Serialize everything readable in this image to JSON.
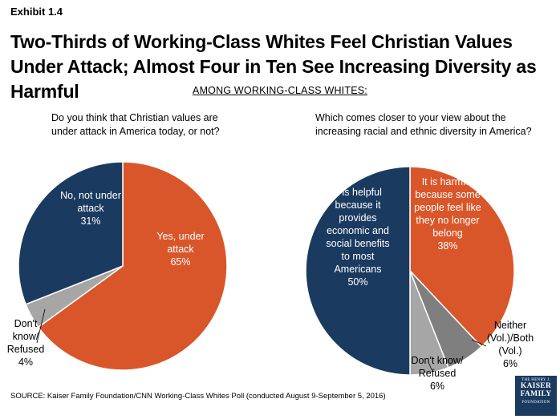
{
  "exhibit_label": "Exhibit 1.4",
  "title": "Two-Thirds of Working-Class Whites Feel Christian Values Under Attack; Almost Four in Ten See Increasing Diversity as Harmful",
  "subheading": "AMONG WORKING-CLASS WHITES:",
  "source": "SOURCE: Kaiser Family Foundation/CNN Working-Class Whites Poll (conducted August 9-September 5, 2016)",
  "logo": {
    "line1": "THE HENRY J.",
    "line2": "KAISER",
    "line3": "FAMILY",
    "line4": "FOUNDATION"
  },
  "colors": {
    "orange": "#d9562a",
    "navy": "#1b3a60",
    "gray": "#7f7f7f",
    "lightgray": "#a6a6a6"
  },
  "chart_data": [
    {
      "type": "pie",
      "title": "Do you think that Christian values are under attack in America today, or not?",
      "slices": [
        {
          "label": "Yes, under attack",
          "value": 65,
          "color": "#d9562a",
          "label_lines": [
            "Yes, under",
            "attack",
            "65%"
          ]
        },
        {
          "label": "Don't know/Refused",
          "value": 4,
          "color": "#a6a6a6",
          "label_lines": [
            "Don't",
            "know/",
            "Refused",
            "4%"
          ]
        },
        {
          "label": "No, not under attack",
          "value": 31,
          "color": "#1b3a60",
          "label_lines": [
            "No, not under",
            "attack",
            "31%"
          ]
        }
      ]
    },
    {
      "type": "pie",
      "title": "Which comes closer to your view about the increasing racial and ethnic diversity in America?",
      "slices": [
        {
          "label": "It is harmful because some people feel like they no longer belong",
          "value": 38,
          "color": "#d9562a",
          "label_lines": [
            "It is harmful",
            "because some",
            "people feel like",
            "they no longer",
            "belong",
            "38%"
          ]
        },
        {
          "label": "Neither (Vol.)/Both (Vol.)",
          "value": 6,
          "color": "#7f7f7f",
          "label_lines": [
            "Neither",
            "(Vol.)/Both",
            "(Vol.)",
            "6%"
          ]
        },
        {
          "label": "Don't know/Refused",
          "value": 6,
          "color": "#a6a6a6",
          "label_lines": [
            "Don't know/",
            "Refused",
            "6%"
          ]
        },
        {
          "label": "It is helpful because it provides economic and social benefits to most Americans",
          "value": 50,
          "color": "#1b3a60",
          "label_lines": [
            "It is helpful",
            "because it",
            "provides",
            "economic and",
            "social benefits",
            "to most",
            "Americans",
            "50%"
          ]
        }
      ]
    }
  ]
}
